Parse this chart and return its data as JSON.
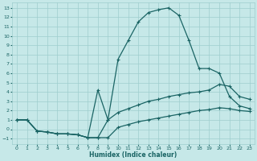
{
  "xlabel": "Humidex (Indice chaleur)",
  "bg_color": "#c6e8e8",
  "line_color": "#1a6464",
  "grid_color": "#9ecece",
  "xlim": [
    -0.5,
    23.5
  ],
  "ylim": [
    -1.6,
    13.6
  ],
  "xticks": [
    0,
    1,
    2,
    3,
    4,
    5,
    6,
    7,
    8,
    9,
    10,
    11,
    12,
    13,
    14,
    15,
    16,
    17,
    18,
    19,
    20,
    21,
    22,
    23
  ],
  "yticks": [
    -1,
    0,
    1,
    2,
    3,
    4,
    5,
    6,
    7,
    8,
    9,
    10,
    11,
    12,
    13
  ],
  "line1_x": [
    0,
    1,
    2,
    3,
    4,
    5,
    6,
    7,
    8,
    9,
    10,
    11,
    12,
    13,
    14,
    15,
    16,
    17,
    18,
    19,
    20,
    21,
    22,
    23
  ],
  "line1_y": [
    1.0,
    1.0,
    -0.2,
    -0.3,
    -0.5,
    -0.5,
    -0.6,
    -0.9,
    -0.9,
    1.0,
    7.5,
    9.5,
    11.5,
    12.5,
    12.8,
    13.0,
    12.2,
    9.5,
    6.5,
    6.5,
    6.0,
    3.5,
    2.5,
    2.2
  ],
  "line2_x": [
    0,
    1,
    2,
    3,
    4,
    5,
    6,
    7,
    8,
    9,
    10,
    11,
    12,
    13,
    14,
    15,
    16,
    17,
    18,
    19,
    20,
    21,
    22,
    23
  ],
  "line2_y": [
    1.0,
    1.0,
    -0.2,
    -0.3,
    -0.5,
    -0.5,
    -0.6,
    -0.9,
    4.2,
    1.0,
    1.8,
    2.2,
    2.6,
    3.0,
    3.2,
    3.5,
    3.7,
    3.9,
    4.0,
    4.2,
    4.8,
    4.6,
    3.5,
    3.2
  ],
  "line3_x": [
    0,
    1,
    2,
    3,
    4,
    5,
    6,
    7,
    8,
    9,
    10,
    11,
    12,
    13,
    14,
    15,
    16,
    17,
    18,
    19,
    20,
    21,
    22,
    23
  ],
  "line3_y": [
    1.0,
    1.0,
    -0.2,
    -0.3,
    -0.5,
    -0.5,
    -0.6,
    -0.9,
    -0.9,
    -0.9,
    0.2,
    0.5,
    0.8,
    1.0,
    1.2,
    1.4,
    1.6,
    1.8,
    2.0,
    2.1,
    2.3,
    2.2,
    2.0,
    1.9
  ]
}
